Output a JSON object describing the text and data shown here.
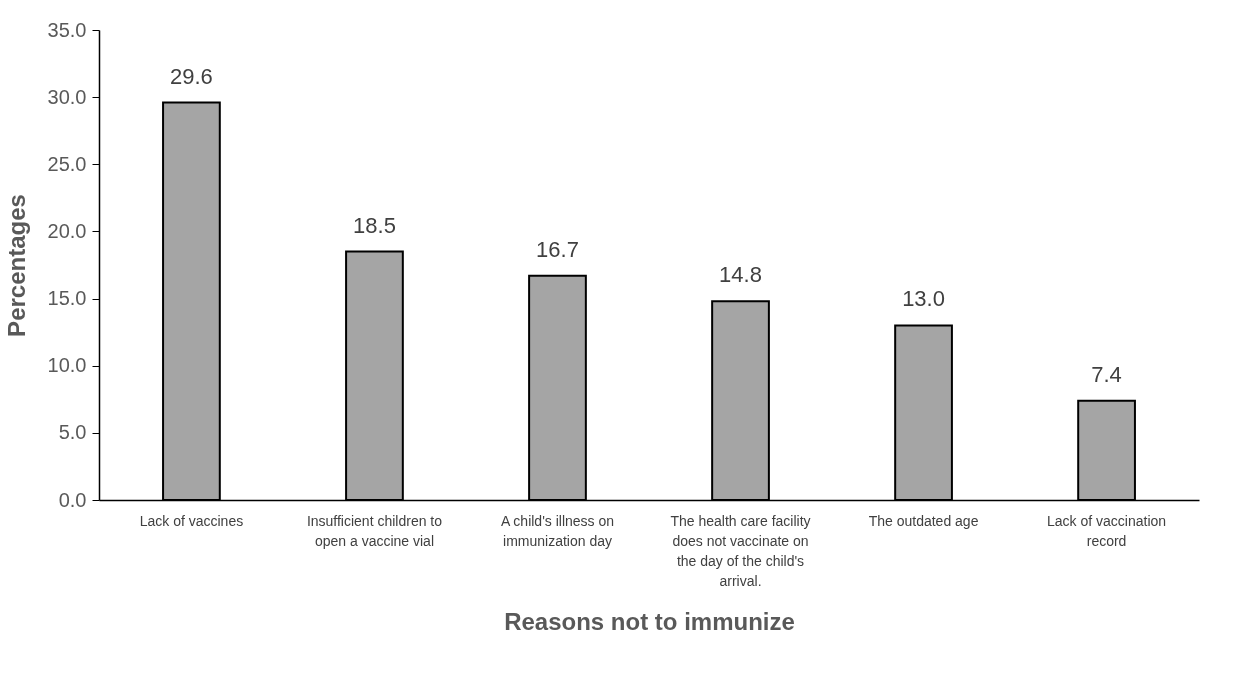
{
  "chart_data": {
    "type": "bar",
    "xlabel": "Reasons not to immunize",
    "ylabel": "Percentages",
    "categories": [
      "Lack of vaccines",
      "Insufficient children to open a vaccine vial",
      "A child's illness on immunization day",
      "The health care facility does not vaccinate on the day of the child's arrival.",
      "The outdated age",
      "Lack of vaccination record"
    ],
    "values": [
      29.6,
      18.5,
      16.7,
      14.8,
      13.0,
      7.4
    ],
    "value_labels": [
      "29.6",
      "18.5",
      "16.7",
      "14.8",
      "13.0",
      "7.4"
    ],
    "color": "#a5a5a5",
    "ylim": [
      0,
      35
    ],
    "yticks": [
      {
        "value": 0,
        "label": "0.0"
      },
      {
        "value": 5,
        "label": "5.0"
      },
      {
        "value": 10,
        "label": "10.0"
      },
      {
        "value": 15,
        "label": "15.0"
      },
      {
        "value": 20,
        "label": "20.0"
      },
      {
        "value": 25,
        "label": "25.0"
      },
      {
        "value": 30,
        "label": "30.0"
      },
      {
        "value": 35,
        "label": "35.0"
      }
    ],
    "grid": false
  }
}
